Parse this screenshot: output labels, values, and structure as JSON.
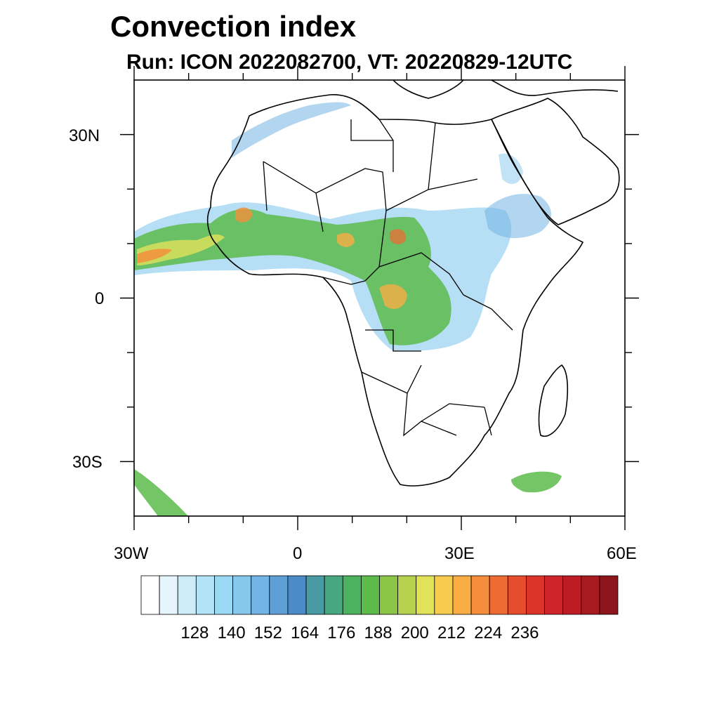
{
  "title": "Convection index",
  "subtitle": "Run: ICON 2022082700,  VT: 20220829-12UTC",
  "map": {
    "extent": {
      "lon": [
        -30,
        60
      ],
      "lat": [
        -40,
        40
      ]
    },
    "lat_ticks": [
      {
        "value": 30,
        "label": "30N"
      },
      {
        "value": 0,
        "label": "0"
      },
      {
        "value": -30,
        "label": "30S"
      }
    ],
    "lon_ticks": [
      {
        "value": -30,
        "label": "30W"
      },
      {
        "value": 0,
        "label": "0"
      },
      {
        "value": 30,
        "label": "30E"
      },
      {
        "value": 60,
        "label": "60E"
      }
    ]
  },
  "colorbar": {
    "colors": [
      "#ffffff",
      "#e6f5fc",
      "#ccecf8",
      "#b3e3f6",
      "#9bd8f3",
      "#86c8ec",
      "#72b5e4",
      "#5e9fd7",
      "#4b8bc8",
      "#4a9aa3",
      "#47a87f",
      "#4cb25f",
      "#5cbb4b",
      "#8ac548",
      "#b5d14d",
      "#e1e15a",
      "#f7cb4d",
      "#f8ad45",
      "#f48e3c",
      "#ee6c34",
      "#e54d2d",
      "#dc3429",
      "#cf2429",
      "#bd1c25",
      "#a61a20",
      "#8c151c"
    ],
    "labels": [
      "128",
      "140",
      "152",
      "164",
      "176",
      "188",
      "200",
      "212",
      "224",
      "236"
    ]
  }
}
